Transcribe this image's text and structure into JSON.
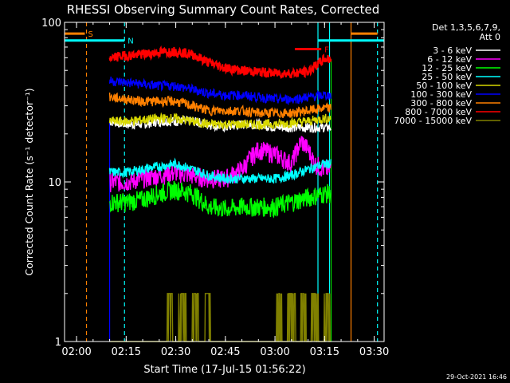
{
  "chart_data": {
    "type": "line",
    "title": "RHESSI Observing Summary Count Rates, Corrected",
    "xlabel": "Start Time (17-Jul-15 01:56:22)",
    "ylabel": "Corrected Count Rate (s⁻¹ detector⁻¹)",
    "yscale": "log",
    "xlim": [
      "01:56:22",
      "03:33:00"
    ],
    "ylim": [
      1,
      100
    ],
    "x_ticks": [
      "02:00",
      "02:15",
      "02:30",
      "02:45",
      "03:00",
      "03:15",
      "03:30"
    ],
    "y_ticks": [
      "1",
      "10",
      "100"
    ],
    "legend_header": [
      "Det 1,3,5,6,7,9,",
      "Att 0"
    ],
    "legend_position": "top-right",
    "timestamp": "29-Oct-2021 16:46",
    "data_start": "02:10:00",
    "data_end": "03:17:00",
    "vertical_markers": [
      {
        "time": "02:03:00",
        "color": "#ff8000",
        "style": "dashed"
      },
      {
        "time": "02:14:30",
        "color": "#00ffff",
        "style": "dashed"
      },
      {
        "time": "03:13:00",
        "color": "#00ffff",
        "style": "solid"
      },
      {
        "time": "03:16:30",
        "color": "#00ffff",
        "style": "solid"
      },
      {
        "time": "03:23:00",
        "color": "#ff8000",
        "style": "solid"
      },
      {
        "time": "03:31:00",
        "color": "#00ffff",
        "style": "dashed"
      }
    ],
    "flags": [
      {
        "label": "S",
        "color": "#ff8000",
        "start": "01:56:22",
        "end": "02:02:30",
        "level": 85
      },
      {
        "label": "N",
        "color": "#00ffff",
        "start": "01:56:22",
        "end": "02:14:30",
        "level": 77
      },
      {
        "label": "F",
        "color": "#ff0000",
        "start": "03:06:00",
        "end": "03:14:00",
        "level": 68
      },
      {
        "label": "",
        "color": "#00ffff",
        "start": "03:13:00",
        "end": "03:33:00",
        "level": 77
      },
      {
        "label": "",
        "color": "#ff8000",
        "start": "03:23:00",
        "end": "03:31:00",
        "level": 85
      }
    ],
    "series": [
      {
        "name": "3 - 6 keV",
        "color": "#ffffff",
        "times": [
          "02:10",
          "02:15",
          "02:20",
          "02:25",
          "02:30",
          "02:35",
          "02:40",
          "02:45",
          "02:50",
          "02:55",
          "03:00",
          "03:05",
          "03:10",
          "03:15",
          "03:17"
        ],
        "values": [
          24,
          23,
          23,
          24,
          24,
          24,
          23,
          22,
          23,
          23,
          22,
          22,
          22,
          22,
          22
        ]
      },
      {
        "name": "6 - 12 keV",
        "color": "#ff00ff",
        "times": [
          "02:10",
          "02:15",
          "02:20",
          "02:25",
          "02:30",
          "02:35",
          "02:40",
          "02:45",
          "02:50",
          "02:55",
          "03:00",
          "03:05",
          "03:08",
          "03:10",
          "03:12",
          "03:15",
          "03:17"
        ],
        "values": [
          10,
          10,
          10.5,
          11,
          11.5,
          11,
          10.5,
          10.5,
          12,
          16,
          15,
          13,
          18,
          16,
          13,
          12,
          12
        ]
      },
      {
        "name": "12 - 25 keV",
        "color": "#00ff00",
        "times": [
          "02:10",
          "02:15",
          "02:20",
          "02:25",
          "02:30",
          "02:35",
          "02:40",
          "02:45",
          "02:50",
          "02:55",
          "03:00",
          "03:05",
          "03:10",
          "03:15",
          "03:17"
        ],
        "values": [
          7.5,
          7.5,
          7.8,
          8.5,
          9,
          8.5,
          7,
          6.8,
          7,
          7,
          7,
          7.5,
          8,
          8.5,
          8.5
        ]
      },
      {
        "name": "25 - 50 keV",
        "color": "#00ffff",
        "times": [
          "02:10",
          "02:15",
          "02:20",
          "02:25",
          "02:30",
          "02:35",
          "02:40",
          "02:45",
          "02:50",
          "02:55",
          "03:00",
          "03:05",
          "03:10",
          "03:15",
          "03:17"
        ],
        "values": [
          11.5,
          11.5,
          12,
          12.5,
          13,
          12,
          11,
          10.5,
          10.5,
          10.5,
          10.5,
          11,
          12,
          13,
          13
        ]
      },
      {
        "name": "50 - 100 keV",
        "color": "#d8d800",
        "times": [
          "02:10",
          "02:15",
          "02:20",
          "02:25",
          "02:30",
          "02:35",
          "02:40",
          "02:45",
          "02:50",
          "02:55",
          "03:00",
          "03:05",
          "03:10",
          "03:15",
          "03:17"
        ],
        "values": [
          24,
          24,
          24.5,
          25,
          25,
          24,
          23,
          23,
          23,
          23,
          23,
          23.5,
          24,
          25,
          25
        ]
      },
      {
        "name": "100 - 300 keV",
        "color": "#0000ff",
        "times": [
          "02:10",
          "02:15",
          "02:20",
          "02:25",
          "02:30",
          "02:35",
          "02:40",
          "02:45",
          "02:50",
          "02:55",
          "03:00",
          "03:05",
          "03:10",
          "03:15",
          "03:17"
        ],
        "values": [
          43,
          42,
          41,
          40,
          40,
          38,
          36,
          35,
          35,
          34,
          33,
          33,
          34,
          35,
          35
        ]
      },
      {
        "name": "300 - 800 keV",
        "color": "#ff8000",
        "times": [
          "02:10",
          "02:15",
          "02:20",
          "02:25",
          "02:30",
          "02:35",
          "02:40",
          "02:45",
          "02:50",
          "02:55",
          "03:00",
          "03:05",
          "03:10",
          "03:15",
          "03:17"
        ],
        "values": [
          34,
          33,
          32,
          32,
          32,
          30,
          28,
          28,
          28,
          27,
          27,
          27,
          28,
          29,
          29
        ]
      },
      {
        "name": "800 - 7000 keV",
        "color": "#ff0000",
        "times": [
          "02:10",
          "02:15",
          "02:20",
          "02:25",
          "02:30",
          "02:35",
          "02:40",
          "02:45",
          "02:50",
          "02:55",
          "03:00",
          "03:05",
          "03:10",
          "03:15",
          "03:17"
        ],
        "values": [
          60,
          62,
          63,
          65,
          66,
          63,
          56,
          52,
          50,
          49,
          48,
          48,
          49,
          59,
          59
        ]
      },
      {
        "name": "7000 - 15000 keV",
        "color": "#808000",
        "times": [
          "02:10",
          "02:20",
          "02:27",
          "02:28",
          "02:30",
          "02:32",
          "02:34",
          "02:36",
          "02:38",
          "02:40",
          "02:41",
          "02:42",
          "02:50",
          "02:55",
          "03:00",
          "03:01",
          "03:03",
          "03:05",
          "03:07",
          "03:09",
          "03:10",
          "03:12",
          "03:14",
          "03:16",
          "03:17"
        ],
        "values": [
          1,
          1,
          1,
          2,
          1,
          2,
          1,
          2,
          1,
          2,
          1,
          1,
          1,
          1,
          1,
          2,
          1,
          2,
          1,
          2,
          1,
          2,
          1,
          2,
          1
        ]
      }
    ]
  }
}
